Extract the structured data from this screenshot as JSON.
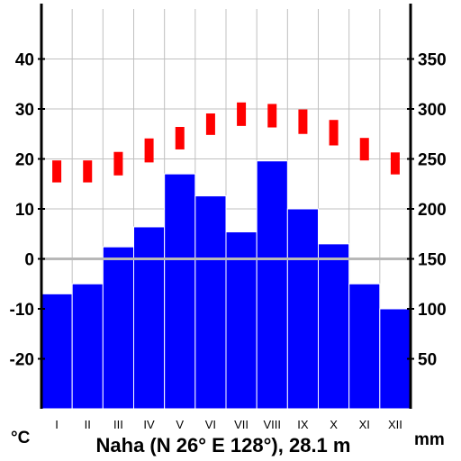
{
  "chart_data": {
    "type": "bar",
    "title": "Naha (N 26° E 128°), 28.1 m",
    "categories": [
      "I",
      "II",
      "III",
      "IV",
      "V",
      "VI",
      "VII",
      "VIII",
      "IX",
      "X",
      "XI",
      "XII"
    ],
    "left_unit": "°C",
    "right_unit": "mm",
    "left_axis": {
      "ylim": [
        -30,
        50
      ],
      "ticks": [
        40,
        30,
        20,
        10,
        0,
        -10,
        -20
      ]
    },
    "right_axis": {
      "ylim": [
        0,
        400
      ],
      "ticks": [
        350,
        300,
        250,
        200,
        150,
        100,
        50
      ]
    },
    "precipitation_mm": [
      115,
      125,
      162,
      182,
      235,
      213,
      177,
      248,
      200,
      165,
      125,
      100
    ],
    "temperature_c": {
      "min": [
        15.3,
        15.3,
        16.7,
        19.3,
        21.9,
        24.8,
        26.6,
        26.3,
        25.0,
        22.7,
        19.7,
        16.9
      ],
      "max": [
        19.7,
        19.7,
        21.4,
        24.1,
        26.4,
        29.1,
        31.3,
        31.0,
        29.9,
        27.8,
        24.2,
        21.3
      ]
    },
    "grid": true,
    "colors": {
      "precipitation": "#0000ff",
      "temperature": "#ff0000",
      "zero_line": "#b8b8b8",
      "grid": "#c0c0c0"
    }
  }
}
